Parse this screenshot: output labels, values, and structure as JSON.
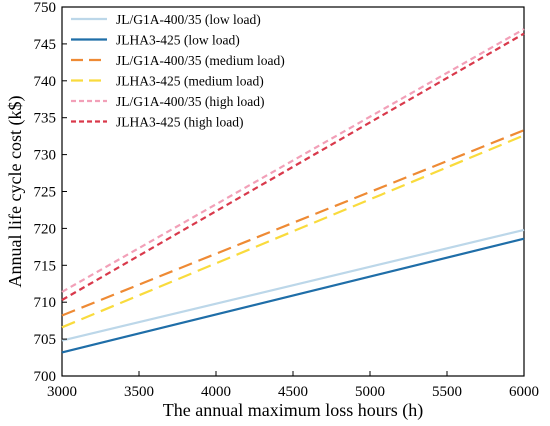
{
  "chart_data": {
    "type": "line",
    "title": "",
    "xlabel": "The annual maximum loss hours (h)",
    "ylabel": "Annual life cycle cost (k$)",
    "xlim": [
      3000,
      6000
    ],
    "ylim": [
      700,
      750
    ],
    "xticks": [
      3000,
      3500,
      4000,
      4500,
      5000,
      5500,
      6000
    ],
    "yticks": [
      700,
      705,
      710,
      715,
      720,
      725,
      730,
      735,
      740,
      745,
      750
    ],
    "grid": false,
    "legend_position": "top-left",
    "series": [
      {
        "name": "JL/G1A-400/35 (low load)",
        "color": "#bcd7e9",
        "dash": "solid",
        "x": [
          3000,
          6000
        ],
        "y": [
          704.8,
          719.8
        ]
      },
      {
        "name": "JLHA3-425 (low load)",
        "color": "#1f6ea8",
        "dash": "solid",
        "x": [
          3000,
          6000
        ],
        "y": [
          703.2,
          718.6
        ]
      },
      {
        "name": "JL/G1A-400/35 (medium load)",
        "color": "#ee8a34",
        "dash": "long",
        "x": [
          3000,
          6000
        ],
        "y": [
          708.2,
          733.3
        ]
      },
      {
        "name": "JLHA3-425 (medium load)",
        "color": "#f9db3d",
        "dash": "long",
        "x": [
          3000,
          6000
        ],
        "y": [
          706.6,
          732.6
        ]
      },
      {
        "name": "JL/G1A-400/35 (high load)",
        "color": "#f2a0b8",
        "dash": "short",
        "x": [
          3000,
          6000
        ],
        "y": [
          711.4,
          747.0
        ]
      },
      {
        "name": "JLHA3-425 (high load)",
        "color": "#d9394b",
        "dash": "short",
        "x": [
          3000,
          6000
        ],
        "y": [
          710.3,
          746.4
        ]
      }
    ]
  }
}
